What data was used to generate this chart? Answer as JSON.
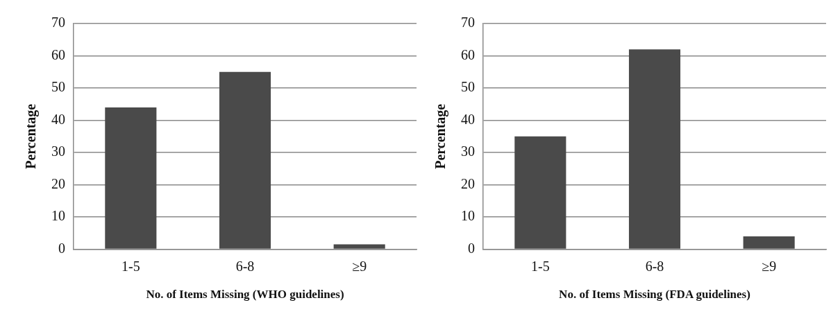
{
  "chart_data": [
    {
      "type": "bar",
      "categories": [
        "1-5",
        "6-8",
        "≥9"
      ],
      "values": [
        44,
        55,
        1.5
      ],
      "color": "#4a4a4a",
      "xlabel": "No. of Items Missing (WHO guidelines)",
      "ylabel": "Percentage",
      "ylim": [
        0,
        70
      ],
      "yticks": [
        0,
        10,
        20,
        30,
        40,
        50,
        60,
        70
      ],
      "grid": "y",
      "legend": false
    },
    {
      "type": "bar",
      "categories": [
        "1-5",
        "6-8",
        "≥9"
      ],
      "values": [
        35,
        62,
        4
      ],
      "color": "#4a4a4a",
      "xlabel": "No. of Items Missing (FDA guidelines)",
      "ylabel": "Percentage",
      "ylim": [
        0,
        70
      ],
      "yticks": [
        0,
        10,
        20,
        30,
        40,
        50,
        60,
        70
      ],
      "grid": "y",
      "legend": false
    }
  ]
}
